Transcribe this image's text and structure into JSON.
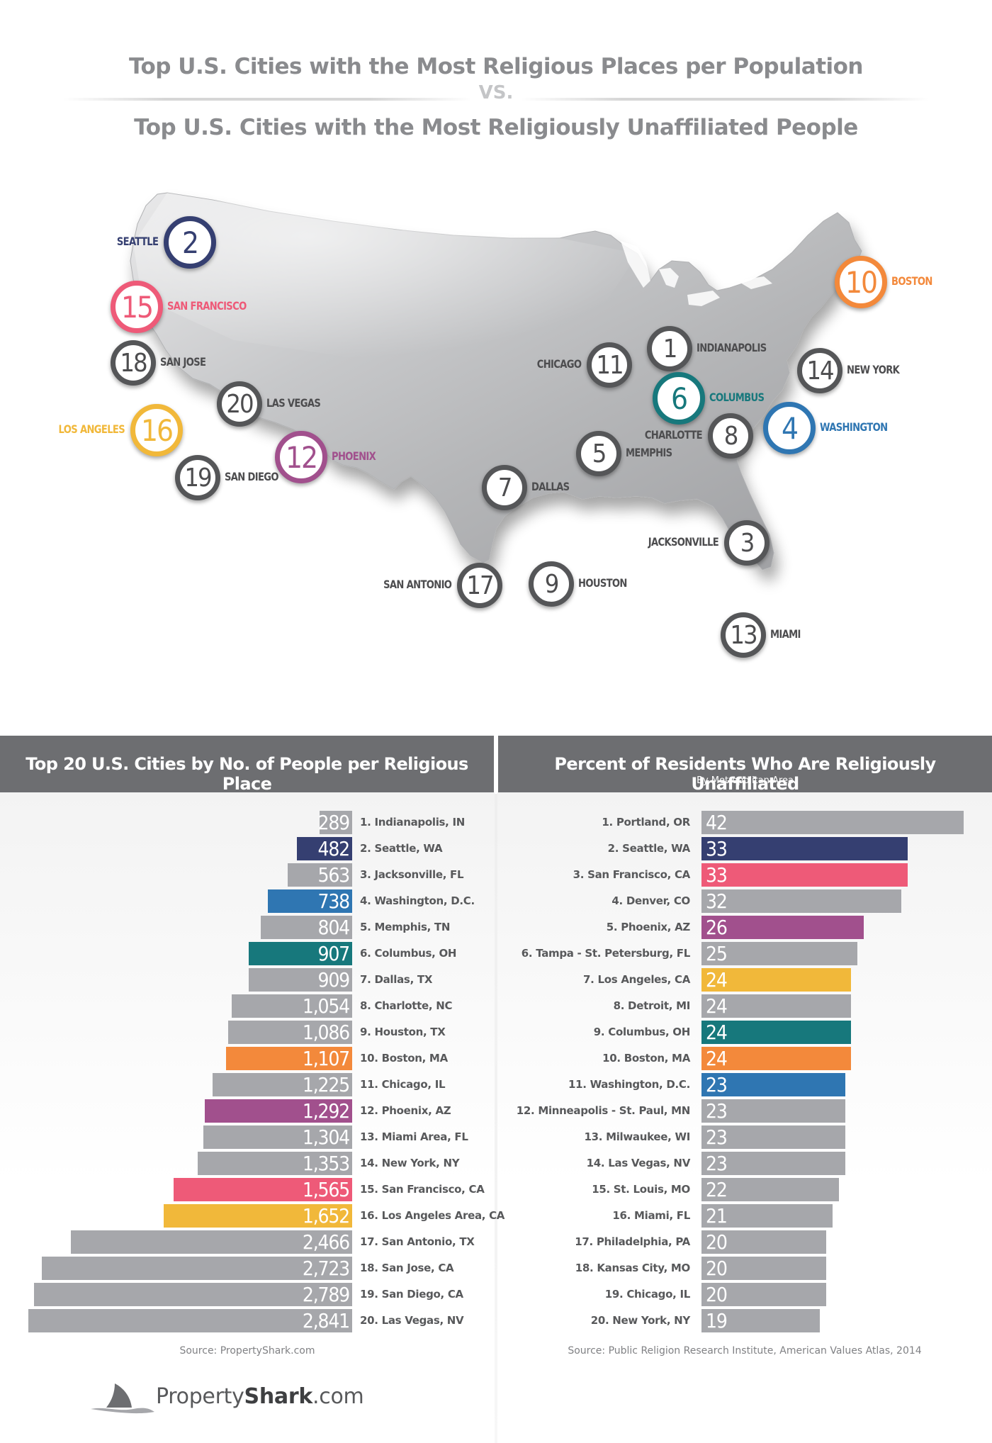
{
  "header": {
    "title_1": "Top U.S. Cities with the Most Religious Places per Population",
    "vs": "VS.",
    "title_2": "Top U.S. Cities with the Most Religiously Unaffiliated People"
  },
  "colors": {
    "gray": "#a6a7ab",
    "navy": "#353f71",
    "pink": "#ee5a78",
    "blue": "#2f76b2",
    "purple": "#a1508d",
    "teal": "#17787c",
    "yellow": "#f1b83a",
    "orange": "#f3893b",
    "marker_gray": "#555658"
  },
  "map": {
    "markers": [
      {
        "rank": "2",
        "city": "SEATTLE",
        "color": "navy"
      },
      {
        "rank": "15",
        "city": "SAN FRANCISCO",
        "color": "pink"
      },
      {
        "rank": "18",
        "city": "SAN JOSE",
        "color": "gray"
      },
      {
        "rank": "16",
        "city": "LOS ANGELES",
        "color": "yellow"
      },
      {
        "rank": "20",
        "city": "LAS VEGAS",
        "color": "gray"
      },
      {
        "rank": "19",
        "city": "SAN DIEGO",
        "color": "gray"
      },
      {
        "rank": "12",
        "city": "PHOENIX",
        "color": "purple"
      },
      {
        "rank": "7",
        "city": "DALLAS",
        "color": "gray"
      },
      {
        "rank": "17",
        "city": "SAN ANTONIO",
        "color": "gray"
      },
      {
        "rank": "9",
        "city": "HOUSTON",
        "color": "gray"
      },
      {
        "rank": "5",
        "city": "MEMPHIS",
        "color": "gray"
      },
      {
        "rank": "11",
        "city": "CHICAGO",
        "color": "gray"
      },
      {
        "rank": "1",
        "city": "INDIANAPOLIS",
        "color": "gray"
      },
      {
        "rank": "6",
        "city": "COLUMBUS",
        "color": "teal"
      },
      {
        "rank": "8",
        "city": "CHARLOTTE",
        "color": "gray"
      },
      {
        "rank": "4",
        "city": "WASHINGTON",
        "color": "blue"
      },
      {
        "rank": "14",
        "city": "NEW YORK",
        "color": "gray"
      },
      {
        "rank": "10",
        "city": "BOSTON",
        "color": "orange"
      },
      {
        "rank": "3",
        "city": "JACKSONVILLE",
        "color": "gray"
      },
      {
        "rank": "13",
        "city": "MIAMI",
        "color": "gray"
      }
    ]
  },
  "chart_data": [
    {
      "type": "bar",
      "title": "Top 20 U.S. Cities by No. of People per Religious Place",
      "source": "Source: PropertyShark.com",
      "categories": [
        "1. Indianapolis, IN",
        "2. Seattle, WA",
        "3. Jacksonville, FL",
        "4. Washington, D.C.",
        "5. Memphis, TN",
        "6. Columbus, OH",
        "7. Dallas, TX",
        "8. Charlotte, NC",
        "9. Houston, TX",
        "10. Boston, MA",
        "11. Chicago, IL",
        "12. Phoenix, AZ",
        "13. Miami Area, FL",
        "14. New York, NY",
        "15. San Francisco, CA",
        "16. Los Angeles Area, CA",
        "17. San Antonio, TX",
        "18. San Jose, CA",
        "19. San Diego, CA",
        "20. Las Vegas, NV"
      ],
      "values": [
        289,
        482,
        563,
        738,
        804,
        907,
        909,
        1054,
        1086,
        1107,
        1225,
        1292,
        1304,
        1353,
        1565,
        1652,
        2466,
        2723,
        2789,
        2841
      ],
      "value_labels": [
        "289",
        "482",
        "563",
        "738",
        "804",
        "907",
        "909",
        "1,054",
        "1,086",
        "1,107",
        "1,225",
        "1,292",
        "1,304",
        "1,353",
        "1,565",
        "1,652",
        "2,466",
        "2,723",
        "2,789",
        "2,841"
      ],
      "bar_colors": [
        "gray",
        "navy",
        "gray",
        "blue",
        "gray",
        "teal",
        "gray",
        "gray",
        "gray",
        "orange",
        "gray",
        "purple",
        "gray",
        "gray",
        "pink",
        "yellow",
        "gray",
        "gray",
        "gray",
        "gray"
      ],
      "orientation": "horizontal, bars extend leftward"
    },
    {
      "type": "bar",
      "title": "Percent of Residents Who Are Religiously Unaffiliated",
      "subtitle": "By Metropolitan Area",
      "source": "Source: Public Religion Research Institute, American Values Atlas, 2014",
      "categories": [
        "1. Portland, OR",
        "2. Seattle, WA",
        "3. San Francisco, CA",
        "4. Denver, CO",
        "5. Phoenix, AZ",
        "6. Tampa - St. Petersburg, FL",
        "7. Los Angeles, CA",
        "8. Detroit, MI",
        "9. Columbus, OH",
        "10. Boston, MA",
        "11. Washington, D.C.",
        "12. Minneapolis - St. Paul, MN",
        "13. Milwaukee, WI",
        "14. Las Vegas,  NV",
        "15. St. Louis, MO",
        "16. Miami, FL",
        "17. Philadelphia, PA",
        "18. Kansas City, MO",
        "19. Chicago, IL",
        "20. New York, NY"
      ],
      "values": [
        42,
        33,
        33,
        32,
        26,
        25,
        24,
        24,
        24,
        24,
        23,
        23,
        23,
        23,
        22,
        21,
        20,
        20,
        20,
        19
      ],
      "value_labels": [
        "42",
        "33",
        "33",
        "32",
        "26",
        "25",
        "24",
        "24",
        "24",
        "24",
        "23",
        "23",
        "23",
        "23",
        "22",
        "21",
        "20",
        "20",
        "20",
        "19"
      ],
      "bar_colors": [
        "gray",
        "navy",
        "pink",
        "gray",
        "purple",
        "gray",
        "yellow",
        "gray",
        "teal",
        "orange",
        "blue",
        "gray",
        "gray",
        "gray",
        "gray",
        "gray",
        "gray",
        "gray",
        "gray",
        "gray"
      ],
      "orientation": "horizontal, bars extend rightward"
    }
  ],
  "logo": {
    "text_light": "Property",
    "text_bold": "Shark",
    "text_suffix": ".com",
    "icon": "shark-fin-icon"
  }
}
